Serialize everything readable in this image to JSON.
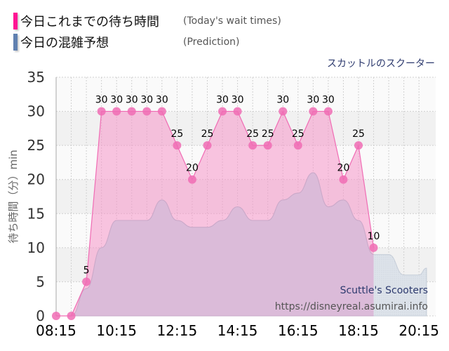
{
  "legend": [
    {
      "label": "今日これまでの待ち時間",
      "label_en": "(Today's wait times)",
      "color": "#ff1493"
    },
    {
      "label": "今日の混雑予想",
      "label_en": "(Prediction)",
      "color": "#6080b0"
    }
  ],
  "attraction_name_jp": "スカットルのスクーター",
  "watermark": {
    "name": "Scuttle's Scooters",
    "url": "https://disneyreal.asumirai.info"
  },
  "chart_data": {
    "type": "area",
    "title": "スカットルのスクーター",
    "xlabel": "",
    "ylabel": "待ち時間（分）min",
    "ylim": [
      0,
      35
    ],
    "yticks": [
      0,
      5,
      10,
      15,
      20,
      25,
      30,
      35
    ],
    "xticks": [
      "08:15",
      "10:15",
      "12:15",
      "14:15",
      "16:15",
      "18:15",
      "20:15"
    ],
    "grid": true,
    "legend_position": "top-left",
    "series": [
      {
        "name": "今日これまでの待ち時間 (Today's wait times)",
        "color": "#f06cb4",
        "x": [
          "08:15",
          "08:45",
          "09:15",
          "09:45",
          "10:15",
          "10:45",
          "11:15",
          "11:45",
          "12:15",
          "12:45",
          "13:15",
          "13:45",
          "14:15",
          "14:45",
          "15:15",
          "15:45",
          "16:15",
          "16:45",
          "17:15",
          "17:45",
          "18:15",
          "18:45"
        ],
        "values": [
          0,
          0,
          5,
          30,
          30,
          30,
          30,
          30,
          25,
          20,
          25,
          30,
          30,
          25,
          25,
          30,
          25,
          30,
          30,
          20,
          25,
          10
        ]
      },
      {
        "name": "今日の混雑予想 (Prediction)",
        "color": "#b8c8d8",
        "x": [
          "08:15",
          "08:45",
          "09:15",
          "09:45",
          "10:15",
          "10:45",
          "11:15",
          "11:45",
          "12:15",
          "12:45",
          "13:15",
          "13:45",
          "14:15",
          "14:45",
          "15:15",
          "15:45",
          "16:15",
          "16:45",
          "17:15",
          "17:45",
          "18:15",
          "18:45",
          "19:15",
          "19:45",
          "20:15",
          "20:30"
        ],
        "values": [
          0,
          0,
          4,
          10,
          14,
          14,
          14,
          17,
          14,
          13,
          13,
          14,
          16,
          14,
          14,
          17,
          18,
          21,
          16,
          17,
          14,
          9,
          9,
          6,
          6,
          7
        ]
      }
    ]
  }
}
